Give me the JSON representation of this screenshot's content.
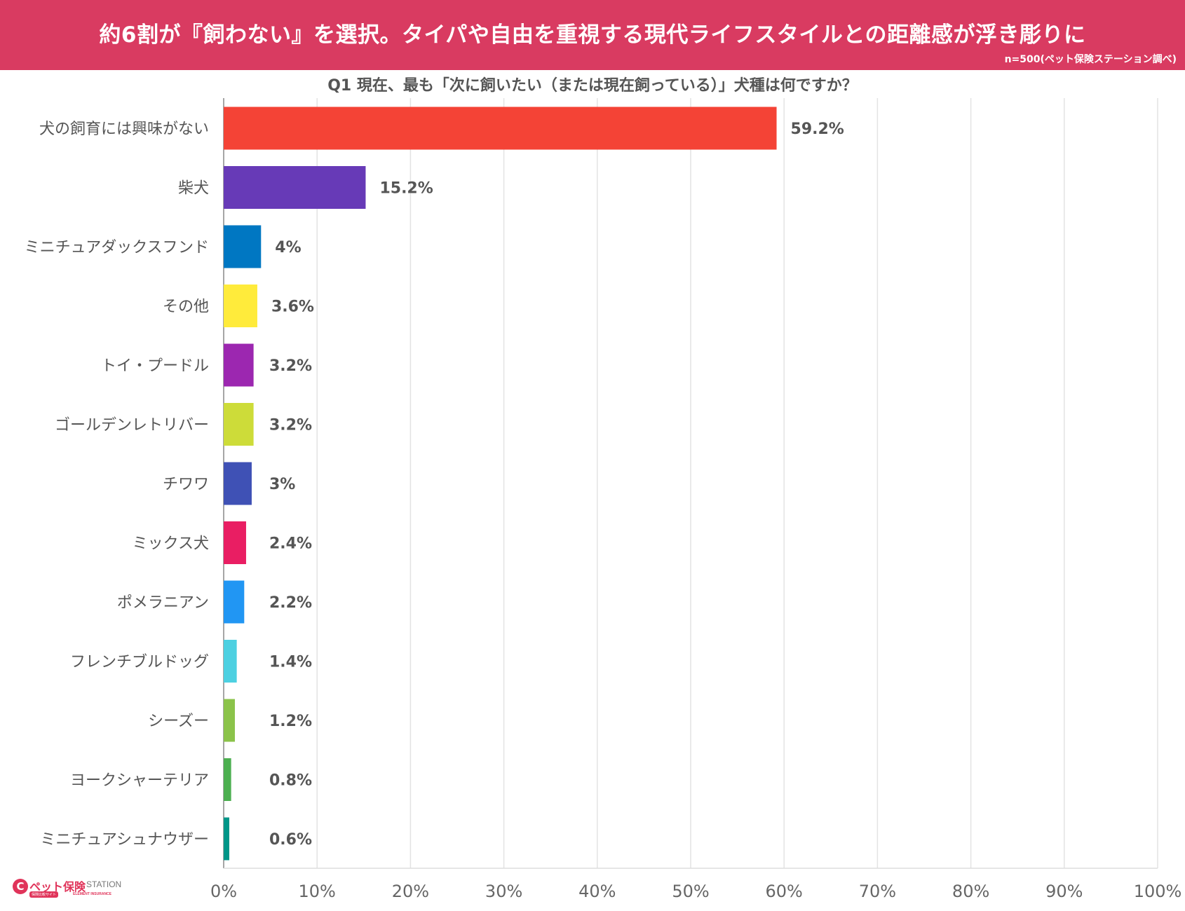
{
  "header": {
    "title": "約6割が『飼わない』を選択。タイパや自由を重視する現代ライフスタイルとの距離感が浮き彫りに",
    "note": "n=500(ペット保険ステーション調べ)",
    "background_color": "#d93b61"
  },
  "question": "Q1 現在、最も「次に飼いたい（または現在飼っている）」犬種は何ですか？",
  "logo": {
    "mark": "C",
    "text": "ペット保険",
    "station": "STATION",
    "sub": "保険比較サイト",
    "sub2": "ELEMENT INSURANCE"
  },
  "chart_data": {
    "type": "bar",
    "orientation": "horizontal",
    "title": "Q1 現在、最も「次に飼いたい（または現在飼っている）」犬種は何ですか？",
    "categories": [
      "犬の飼育には興味がない",
      "柴犬",
      "ミニチュアダックスフンド",
      "その他",
      "トイ・プードル",
      "ゴールデンレトリバー",
      "チワワ",
      "ミックス犬",
      "ポメラニアン",
      "フレンチブルドッグ",
      "シーズー",
      "ヨークシャーテリア",
      "ミニチュアシュナウザー"
    ],
    "values": [
      59.2,
      15.2,
      4,
      3.6,
      3.2,
      3.2,
      3,
      2.4,
      2.2,
      1.4,
      1.2,
      0.8,
      0.6
    ],
    "value_labels": [
      "59.2%",
      "15.2%",
      "4%",
      "3.6%",
      "3.2%",
      "3.2%",
      "3%",
      "2.4%",
      "2.2%",
      "1.4%",
      "1.2%",
      "0.8%",
      "0.6%"
    ],
    "colors": [
      "#f44336",
      "#673ab7",
      "#0077c2",
      "#ffeb3b",
      "#9c27b0",
      "#cddc39",
      "#3f51b5",
      "#e91e63",
      "#2196f3",
      "#4dd0e1",
      "#8bc34a",
      "#4caf50",
      "#009688"
    ],
    "xlim": [
      0,
      100
    ],
    "xticks": [
      0,
      10,
      20,
      30,
      40,
      50,
      60,
      70,
      80,
      90,
      100
    ],
    "xtick_labels": [
      "0%",
      "10%",
      "20%",
      "30%",
      "40%",
      "50%",
      "60%",
      "70%",
      "80%",
      "90%",
      "100%"
    ],
    "grid": true,
    "legend": "none"
  }
}
